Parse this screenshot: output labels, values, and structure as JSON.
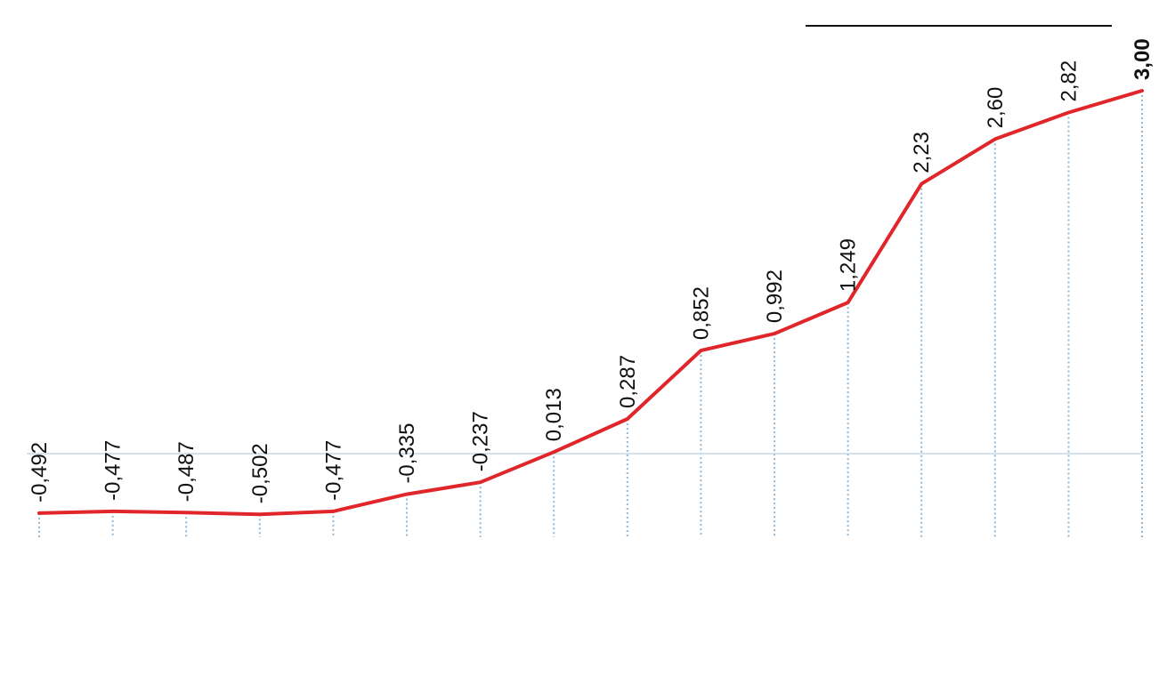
{
  "chart_data": {
    "type": "line",
    "title": "",
    "xlabel": "",
    "ylabel": "",
    "x": [
      1,
      2,
      3,
      4,
      5,
      6,
      7,
      8,
      9,
      10,
      11,
      12,
      13,
      14,
      15,
      16
    ],
    "values": [
      -0.492,
      -0.477,
      -0.487,
      -0.502,
      -0.477,
      -0.335,
      -0.237,
      0.013,
      0.287,
      0.852,
      0.992,
      1.249,
      2.23,
      2.6,
      2.82,
      3.0
    ],
    "labels": [
      "-0,492",
      "-0,477",
      "-0,487",
      "-0,502",
      "-0,477",
      "-0,335",
      "-0,237",
      "0,013",
      "0,287",
      "0,852",
      "0,992",
      "1,249",
      "2,23",
      "2,60",
      "2,82",
      "3,00"
    ],
    "ylim": [
      -0.6,
      3.0
    ],
    "baseline": 0,
    "grid": true,
    "colors": {
      "line": "#e0262b",
      "guide": "#8fb8d8",
      "baseline": "#c5d9ea",
      "legend_line": "#111111"
    }
  }
}
